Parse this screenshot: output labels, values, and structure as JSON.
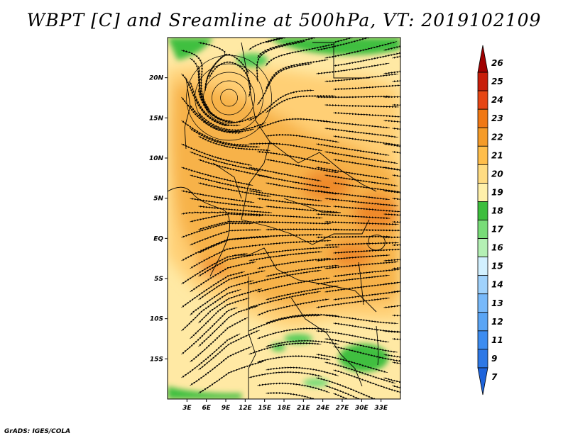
{
  "title": "WBPT [C] and Sreamline at 500hPa, VT: 2019102109",
  "credit": "GrADS: IGES/COLA",
  "map": {
    "lon_range": [
      0,
      36
    ],
    "lat_range": [
      -20,
      25
    ],
    "lon_ticks": [
      {
        "value": 3,
        "label": "3E"
      },
      {
        "value": 6,
        "label": "6E"
      },
      {
        "value": 9,
        "label": "9E"
      },
      {
        "value": 12,
        "label": "12E"
      },
      {
        "value": 15,
        "label": "15E"
      },
      {
        "value": 18,
        "label": "18E"
      },
      {
        "value": 21,
        "label": "21E"
      },
      {
        "value": 24,
        "label": "24E"
      },
      {
        "value": 27,
        "label": "27E"
      },
      {
        "value": 30,
        "label": "30E"
      },
      {
        "value": 33,
        "label": "33E"
      }
    ],
    "lat_ticks": [
      {
        "value": 20,
        "label": "20N"
      },
      {
        "value": 15,
        "label": "15N"
      },
      {
        "value": 10,
        "label": "10N"
      },
      {
        "value": 5,
        "label": "5N"
      },
      {
        "value": 0,
        "label": "EQ"
      },
      {
        "value": -5,
        "label": "5S"
      },
      {
        "value": -10,
        "label": "10S"
      },
      {
        "value": -15,
        "label": "15S"
      }
    ]
  },
  "colorbar": {
    "levels": [
      "7",
      "9",
      "11",
      "12",
      "13",
      "14",
      "15",
      "16",
      "17",
      "18",
      "19",
      "20",
      "21",
      "22",
      "23",
      "24",
      "25",
      "26"
    ],
    "colors": [
      "#1e64dc",
      "#2d78e6",
      "#3c8cf0",
      "#5aa5f5",
      "#78b9fa",
      "#a0d2fc",
      "#d2f0ff",
      "#b4f0b4",
      "#78dc78",
      "#3cbe3c",
      "#fff0aa",
      "#ffdc82",
      "#ffbe4b",
      "#f59b28",
      "#f07814",
      "#e64614",
      "#c81e0a",
      "#a00000"
    ]
  },
  "features": {
    "vortex_center": {
      "lon": 9.5,
      "lat": 17.5
    },
    "green_regions": [
      "north edge near 20N",
      "southeast around 25E-32E 15S",
      "southern margin near 18S"
    ],
    "warm_core": "orange 21-23C over central Africa, 0-10N, 20E-32E"
  }
}
